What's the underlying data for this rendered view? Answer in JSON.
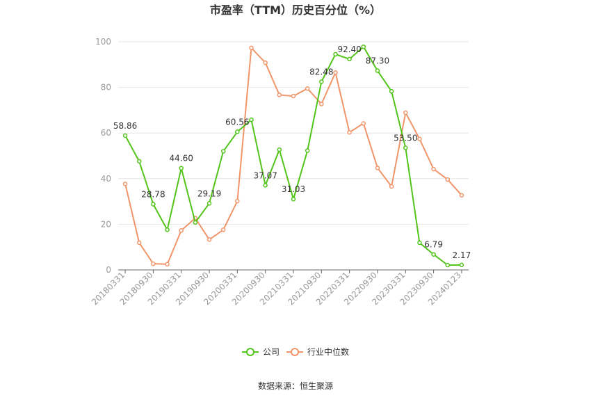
{
  "chart_data": {
    "type": "line",
    "title": "市盈率（TTM）历史百分位（%）",
    "source": "数据来源：恒生聚源",
    "ylim": [
      0,
      100
    ],
    "yticks": [
      0,
      20,
      40,
      60,
      80,
      100
    ],
    "grid": true,
    "legend_position": "bottom",
    "x_tick_labels": [
      "20180331",
      "20180930",
      "20190331",
      "20190930",
      "20200331",
      "20200930",
      "20210331",
      "20210930",
      "20220331",
      "20220930",
      "20230331",
      "20230930",
      "20240123"
    ],
    "series": [
      {
        "name": "公司",
        "color": "#52c41a",
        "values": [
          58.86,
          47.6,
          28.78,
          17.6,
          44.6,
          20.8,
          29.19,
          52.0,
          60.56,
          65.8,
          37.07,
          52.7,
          31.03,
          52.3,
          82.48,
          94.5,
          92.4,
          97.8,
          87.3,
          78.3,
          53.5,
          11.9,
          6.79,
          2.1,
          2.17
        ],
        "labels": {
          "0": "58.86",
          "2": "28.78",
          "4": "44.60",
          "6": "29.19",
          "8": "60.56",
          "10": "37.07",
          "12": "31.03",
          "14": "82.48",
          "16": "92.40",
          "18": "87.30",
          "20": "53.50",
          "22": "6.79",
          "24": "2.17"
        }
      },
      {
        "name": "行业中位数",
        "color": "#f0956a",
        "values": [
          37.7,
          11.9,
          2.7,
          2.5,
          17.3,
          22.7,
          13.3,
          17.6,
          30.2,
          97.3,
          90.8,
          76.7,
          76.2,
          79.5,
          72.7,
          86.5,
          60.3,
          64.2,
          44.7,
          36.6,
          68.9,
          57.4,
          44.2,
          39.6,
          32.7
        ]
      }
    ]
  }
}
